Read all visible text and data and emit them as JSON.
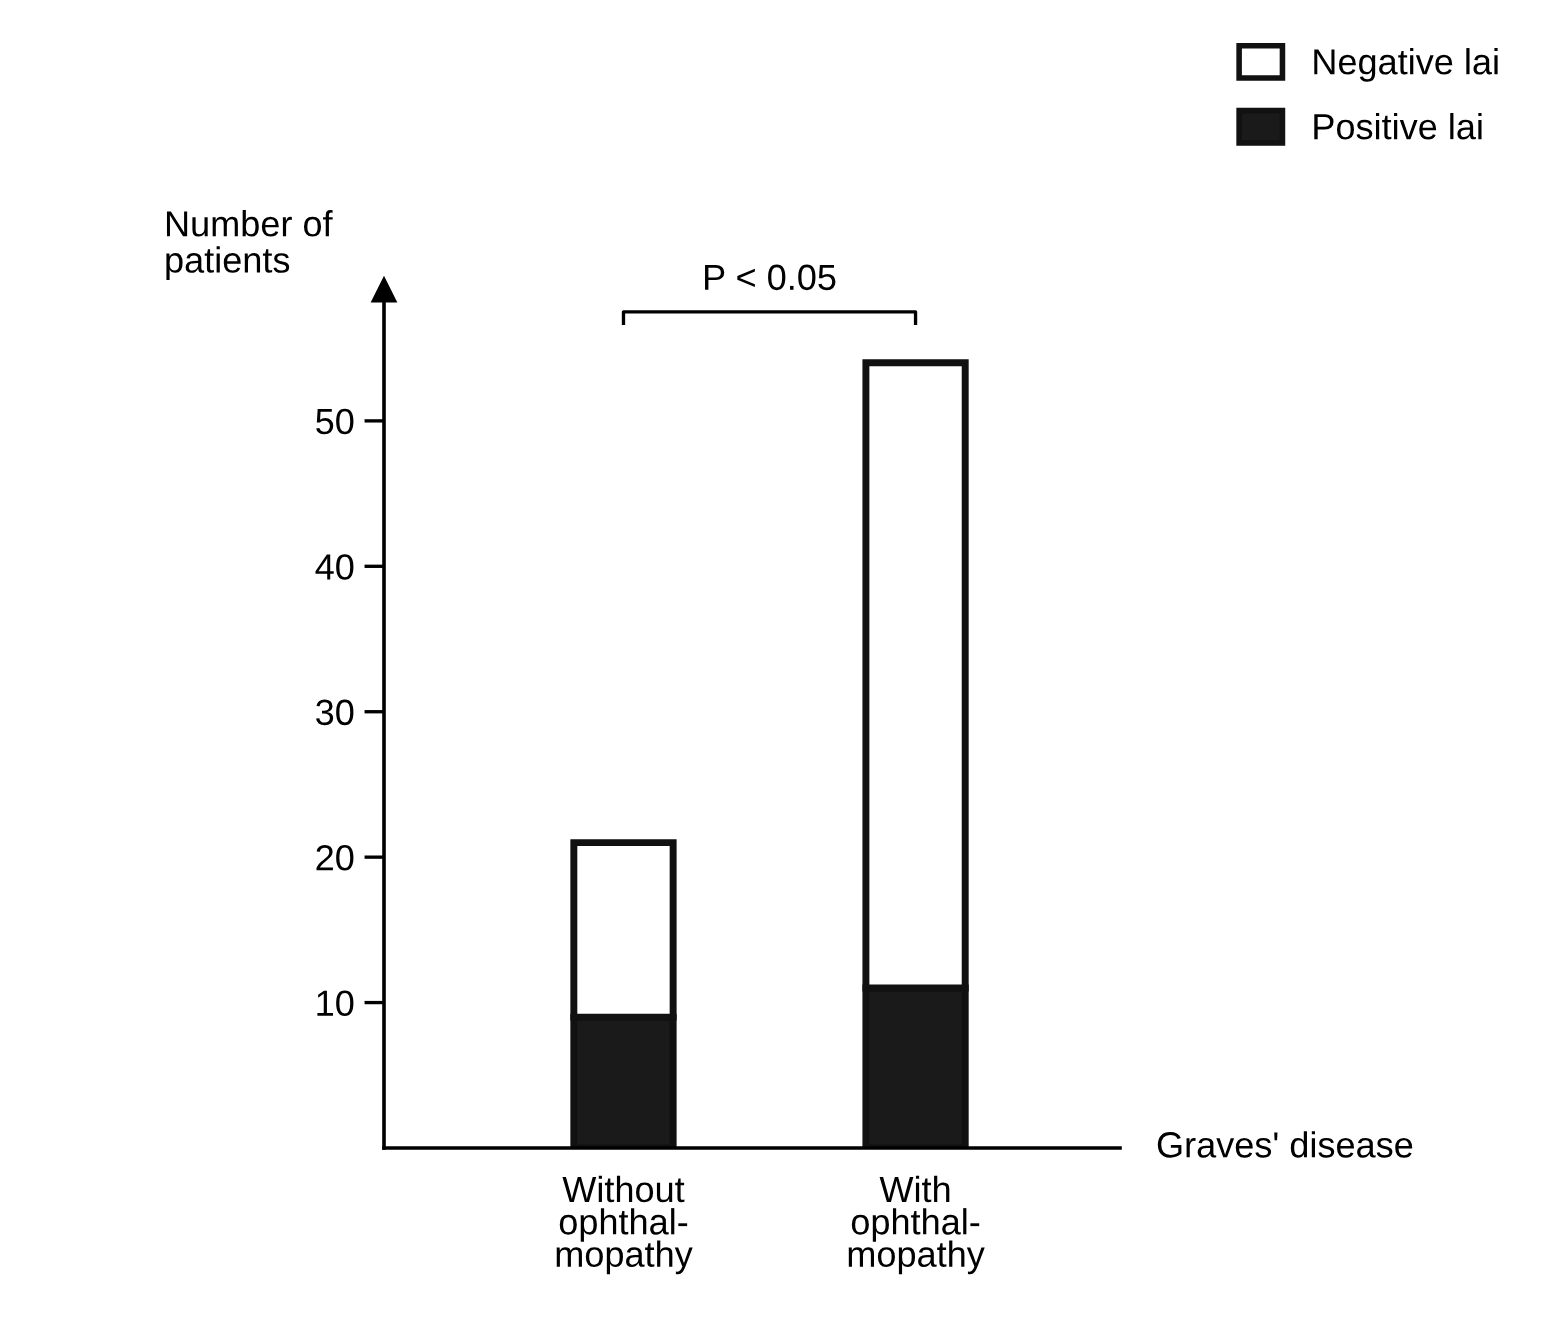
{
  "chart_data": {
    "type": "bar",
    "stacked": true,
    "xlabel": "Graves' disease",
    "ylabel": "Number of\npatients",
    "categories": [
      "Without\nophthal-\nmopathy",
      "With\nophthal-\nmopathy"
    ],
    "series": [
      {
        "name": "Positive lai",
        "color": "#1a1a1a",
        "values": [
          9,
          11
        ]
      },
      {
        "name": "Negative lai",
        "color": "#ffffff",
        "values": [
          12,
          43
        ]
      }
    ],
    "ylim": [
      0,
      59
    ],
    "yticks": [
      10,
      20,
      30,
      40,
      50
    ],
    "annotations": [
      "P < 0.05"
    ],
    "grid": false,
    "legend": "top right"
  }
}
